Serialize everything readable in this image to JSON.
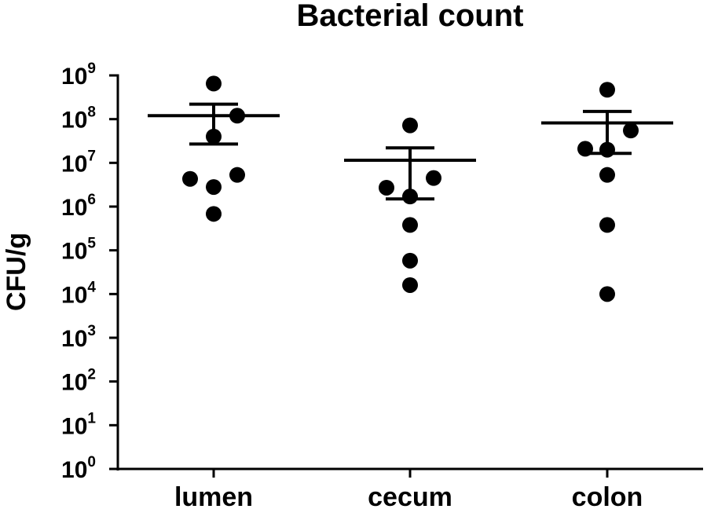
{
  "chart_data": {
    "type": "scatter",
    "title": "Bacterial count",
    "ylabel": "CFU/g",
    "xlabel": "",
    "y_scale": "log10",
    "ylim": [
      1,
      1000000000
    ],
    "y_ticks": [
      {
        "base": "10",
        "exp": "0",
        "value": 1
      },
      {
        "base": "10",
        "exp": "1",
        "value": 10
      },
      {
        "base": "10",
        "exp": "2",
        "value": 100
      },
      {
        "base": "10",
        "exp": "3",
        "value": 1000
      },
      {
        "base": "10",
        "exp": "4",
        "value": 10000
      },
      {
        "base": "10",
        "exp": "5",
        "value": 100000
      },
      {
        "base": "10",
        "exp": "6",
        "value": 1000000
      },
      {
        "base": "10",
        "exp": "7",
        "value": 10000000
      },
      {
        "base": "10",
        "exp": "8",
        "value": 100000000
      },
      {
        "base": "10",
        "exp": "9",
        "value": 1000000000
      }
    ],
    "categories": [
      "lumen",
      "cecum",
      "colon"
    ],
    "groups": [
      {
        "category": "lumen",
        "mean": 120000000,
        "sem_upper": 220000000,
        "sem_lower": 27000000,
        "points": [
          650000000,
          120000000,
          40000000,
          5300000,
          4300000,
          2800000,
          680000
        ]
      },
      {
        "category": "cecum",
        "mean": 11500000,
        "sem_upper": 22000000,
        "sem_lower": 1500000,
        "points": [
          72000000,
          4500000,
          2700000,
          1700000,
          380000,
          58000,
          16000
        ]
      },
      {
        "category": "colon",
        "mean": 82000000,
        "sem_upper": 150000000,
        "sem_lower": 16500000,
        "points": [
          470000000,
          55000000,
          21000000,
          20000000,
          5300000,
          380000,
          10000
        ]
      }
    ],
    "grid": false,
    "legend": "none",
    "marker_color": "#000000"
  }
}
